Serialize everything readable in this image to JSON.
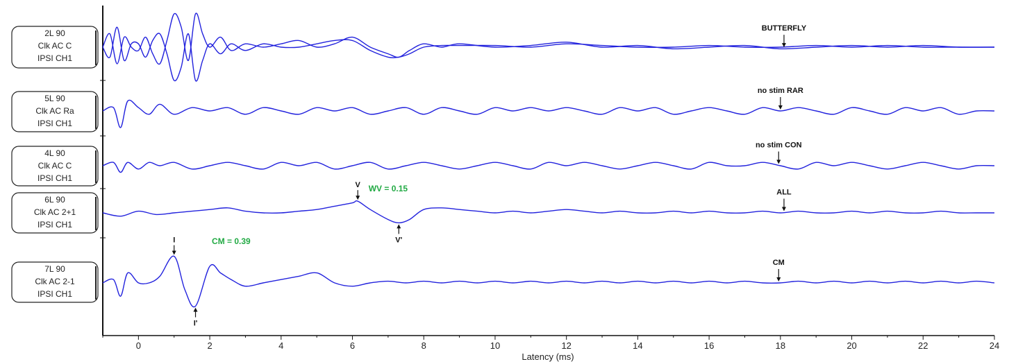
{
  "chart_data": {
    "type": "line",
    "xlabel": "Latency (ms)",
    "xlim": [
      -1,
      24
    ],
    "xticks": [
      0,
      2,
      4,
      6,
      8,
      10,
      12,
      14,
      16,
      18,
      20,
      22,
      24
    ],
    "xtick_labels": [
      "0",
      "2",
      "4",
      "6",
      "8",
      "10",
      "12",
      "14",
      "16",
      "18",
      "20",
      "22",
      "24"
    ],
    "trace_color": "#2222dd",
    "measure_color": "#22aa44",
    "traces": [
      {
        "label_lines": [
          "2L 90",
          "Clk AC C",
          "IPSI CH1"
        ],
        "annotation": "BUTTERFLY",
        "annotation_x": 18.1,
        "series": [
          {
            "x": [
              -1,
              -0.8,
              -0.6,
              -0.4,
              -0.2,
              0,
              0.2,
              0.4,
              0.6,
              0.8,
              1.0,
              1.2,
              1.4,
              1.6,
              1.8,
              2.0,
              2.3,
              2.6,
              3.0,
              3.5,
              4.0,
              4.5,
              5.0,
              5.5,
              6.0,
              6.5,
              7.0,
              7.3,
              7.6,
              8.0,
              8.5,
              9.0,
              10,
              11,
              12,
              13,
              14,
              15,
              16,
              17,
              18,
              19,
              20,
              21,
              22,
              23,
              24
            ],
            "y": [
              0,
              0.4,
              -0.5,
              0.3,
              0,
              -0.1,
              0.3,
              -0.2,
              -0.5,
              0.2,
              1.0,
              0.6,
              -0.4,
              1.0,
              0.4,
              0.0,
              0.3,
              -0.1,
              0.1,
              0.0,
              0.1,
              0.2,
              0.0,
              0.1,
              0.3,
              0.0,
              -0.2,
              -0.3,
              -0.1,
              0.1,
              0.0,
              0.1,
              0.0,
              0.05,
              0.15,
              0.0,
              0.05,
              -0.05,
              0.0,
              0.05,
              -0.05,
              0.0,
              0.05,
              0.0,
              0.05,
              0.0,
              0.0
            ]
          },
          {
            "x": [
              -1,
              -0.8,
              -0.6,
              -0.4,
              -0.2,
              0,
              0.2,
              0.4,
              0.6,
              0.8,
              1.0,
              1.2,
              1.4,
              1.6,
              1.8,
              2.0,
              2.3,
              2.6,
              3.0,
              3.5,
              4.0,
              4.5,
              5.0,
              5.5,
              6.0,
              6.5,
              7.0,
              7.3,
              7.6,
              8.0,
              8.5,
              9.0,
              10,
              11,
              12,
              13,
              14,
              15,
              16,
              17,
              18,
              19,
              20,
              21,
              22,
              23,
              24
            ],
            "y": [
              0,
              -0.3,
              0.6,
              -0.4,
              0.1,
              0.1,
              -0.3,
              0.2,
              0.4,
              -0.2,
              -1.0,
              -0.6,
              0.4,
              -1.0,
              -0.4,
              0.1,
              -0.2,
              0.1,
              -0.1,
              0.1,
              0.0,
              0.0,
              0.1,
              0.2,
              0.2,
              -0.1,
              -0.3,
              -0.3,
              -0.2,
              0.0,
              0.05,
              0.05,
              0.05,
              0.0,
              0.1,
              0.05,
              0.0,
              0.0,
              0.05,
              0.0,
              0.0,
              0.05,
              0.0,
              0.05,
              0.0,
              0.0,
              0.0
            ]
          }
        ]
      },
      {
        "label_lines": [
          "5L 90",
          "Clk AC Ra",
          "IPSI CH1"
        ],
        "annotation": "no stim RAR",
        "annotation_x": 18.0,
        "series": [
          {
            "x": [
              -1,
              -0.7,
              -0.5,
              -0.3,
              0,
              0.3,
              0.6,
              1.0,
              1.5,
              2.0,
              2.5,
              3.0,
              3.5,
              4.0,
              4.5,
              5.0,
              5.5,
              6.0,
              6.5,
              7.0,
              7.5,
              8.0,
              8.5,
              9.0,
              9.5,
              10,
              10.5,
              11,
              11.5,
              12,
              12.5,
              13,
              13.5,
              14,
              14.5,
              15,
              15.5,
              16,
              16.5,
              17,
              17.5,
              18,
              18.5,
              19,
              19.5,
              20,
              20.5,
              21,
              21.5,
              22,
              22.5,
              23,
              23.5,
              24
            ],
            "y": [
              0,
              0.1,
              -0.5,
              0.3,
              0.1,
              -0.1,
              0.2,
              -0.1,
              0.1,
              0.0,
              0.1,
              -0.1,
              0.1,
              0.0,
              -0.1,
              0.1,
              0.0,
              0.1,
              -0.1,
              0.0,
              0.1,
              -0.1,
              0.1,
              0.0,
              -0.1,
              0.1,
              0.0,
              0.1,
              0.0,
              0.1,
              0.0,
              -0.1,
              0.1,
              0.0,
              0.1,
              -0.1,
              0.0,
              0.1,
              0.0,
              -0.1,
              0.1,
              0.0,
              0.1,
              0.0,
              -0.1,
              0.1,
              0.0,
              -0.1,
              0.1,
              0.0,
              0.1,
              -0.1,
              0.0,
              0.0
            ]
          }
        ]
      },
      {
        "label_lines": [
          "4L 90",
          "Clk AC C",
          "IPSI CH1"
        ],
        "annotation": "no stim CON",
        "annotation_x": 17.95,
        "series": [
          {
            "x": [
              -1,
              -0.7,
              -0.5,
              -0.3,
              0,
              0.3,
              0.6,
              1.0,
              1.5,
              2.0,
              2.5,
              3.0,
              3.5,
              4.0,
              4.5,
              5.0,
              5.5,
              6.0,
              6.5,
              7.0,
              7.5,
              8.0,
              8.5,
              9.0,
              9.5,
              10,
              10.5,
              11,
              11.5,
              12,
              12.5,
              13,
              13.5,
              14,
              14.5,
              15,
              15.5,
              16,
              16.5,
              17,
              17.5,
              18,
              18.5,
              19,
              19.5,
              20,
              20.5,
              21,
              21.5,
              22,
              22.5,
              23,
              23.5,
              24
            ],
            "y": [
              0,
              0.1,
              -0.2,
              0.1,
              -0.1,
              0.1,
              0.0,
              0.1,
              -0.1,
              0.0,
              0.1,
              0.0,
              -0.1,
              0.1,
              0.0,
              0.1,
              -0.1,
              0.0,
              0.1,
              -0.1,
              0.0,
              0.1,
              0.0,
              -0.1,
              0.0,
              0.1,
              0.0,
              -0.1,
              0.1,
              0.0,
              0.1,
              0.0,
              -0.1,
              0.0,
              0.1,
              0.0,
              -0.1,
              0.1,
              0.0,
              0.0,
              0.1,
              0.0,
              -0.1,
              0.1,
              0.0,
              0.1,
              0.0,
              -0.1,
              0.0,
              0.1,
              0.0,
              -0.1,
              0.0,
              0.0
            ]
          }
        ]
      },
      {
        "label_lines": [
          "6L 90",
          "Clk AC 2+1",
          "IPSI CH1"
        ],
        "annotation": "ALL",
        "annotation_x": 18.1,
        "series": [
          {
            "x": [
              -1,
              -0.5,
              0,
              0.5,
              1.0,
              1.5,
              2.0,
              2.5,
              3.0,
              3.5,
              4.0,
              4.5,
              5.0,
              5.5,
              6.0,
              6.15,
              6.5,
              7.0,
              7.3,
              7.6,
              8.0,
              8.5,
              9.0,
              9.5,
              10,
              10.5,
              11,
              11.5,
              12,
              12.5,
              13,
              13.5,
              14,
              14.5,
              15,
              15.5,
              16,
              16.5,
              17,
              17.5,
              18,
              18.5,
              19,
              19.5,
              20,
              20.5,
              21,
              21.5,
              22,
              22.5,
              23,
              23.5,
              24
            ],
            "y": [
              0,
              -0.1,
              0.05,
              -0.05,
              0.0,
              0.05,
              0.1,
              0.15,
              0.05,
              0.0,
              0.0,
              0.05,
              0.1,
              0.2,
              0.3,
              0.35,
              0.1,
              -0.2,
              -0.3,
              -0.2,
              0.1,
              0.15,
              0.1,
              0.05,
              0.0,
              0.05,
              0.0,
              0.05,
              0.1,
              0.05,
              0.0,
              0.05,
              0.0,
              0.0,
              0.05,
              0.0,
              0.05,
              0.0,
              0.0,
              0.05,
              0.0,
              0.05,
              0.0,
              0.0,
              0.05,
              0.0,
              0.05,
              0.0,
              0.0,
              0.05,
              0.0,
              0.0,
              0.0
            ]
          }
        ]
      },
      {
        "label_lines": [
          "7L 90",
          "Clk AC 2-1",
          "IPSI CH1"
        ],
        "annotation": "CM",
        "annotation_x": 17.95,
        "series": [
          {
            "x": [
              -1,
              -0.7,
              -0.5,
              -0.3,
              0,
              0.3,
              0.6,
              1.0,
              1.3,
              1.6,
              2.0,
              2.3,
              2.6,
              3.0,
              3.5,
              4.0,
              4.5,
              5.0,
              5.5,
              6.0,
              6.5,
              7.0,
              7.5,
              8.0,
              8.5,
              9.0,
              9.5,
              10,
              10.5,
              11,
              11.5,
              12,
              12.5,
              13,
              13.5,
              14,
              14.5,
              15,
              15.5,
              16,
              16.5,
              17,
              17.5,
              18,
              18.5,
              19,
              19.5,
              20,
              20.5,
              21,
              21.5,
              22,
              22.5,
              23,
              23.5,
              24
            ],
            "y": [
              0,
              0.1,
              -0.4,
              0.3,
              0.0,
              0.0,
              0.2,
              0.8,
              -0.2,
              -0.7,
              0.5,
              0.3,
              0.1,
              -0.1,
              0.0,
              0.1,
              0.2,
              0.3,
              0.0,
              -0.1,
              0.0,
              0.05,
              0.0,
              0.05,
              0.0,
              0.05,
              0.0,
              0.05,
              0.0,
              0.05,
              0.0,
              0.05,
              0.0,
              0.05,
              0.0,
              0.05,
              0.0,
              0.05,
              0.0,
              0.05,
              0.0,
              0.05,
              0.0,
              0.0,
              0.05,
              0.0,
              0.05,
              0.0,
              0.05,
              0.0,
              0.05,
              0.0,
              0.05,
              0.0,
              0.05,
              0.0
            ]
          }
        ]
      }
    ],
    "peak_markers": [
      {
        "trace": 3,
        "label": "V",
        "x": 6.15,
        "position": "above"
      },
      {
        "trace": 3,
        "label": "V'",
        "x": 7.3,
        "position": "below"
      },
      {
        "trace": 4,
        "label": "I",
        "x": 1.0,
        "position": "above"
      },
      {
        "trace": 4,
        "label": "I'",
        "x": 1.6,
        "position": "below"
      }
    ],
    "measurements": [
      {
        "trace": 3,
        "text": "WV = 0.15",
        "x": 7.0
      },
      {
        "trace": 4,
        "text": "CM = 0.39",
        "x": 2.6
      }
    ]
  }
}
